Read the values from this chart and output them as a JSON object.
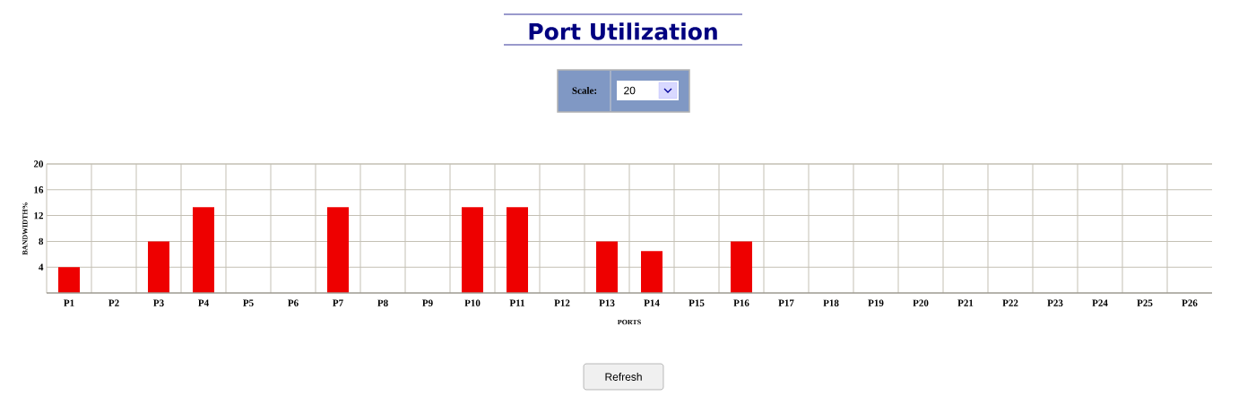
{
  "chart_data": {
    "type": "bar",
    "title": "Port Utilization",
    "xlabel": "PORTS",
    "ylabel": "BANDWIDTH%",
    "categories": [
      "P1",
      "P2",
      "P3",
      "P4",
      "P5",
      "P6",
      "P7",
      "P8",
      "P9",
      "P10",
      "P11",
      "P12",
      "P13",
      "P14",
      "P15",
      "P16",
      "P17",
      "P18",
      "P19",
      "P20",
      "P21",
      "P22",
      "P23",
      "P24",
      "P25",
      "P26"
    ],
    "values": [
      4,
      0,
      8,
      13.3,
      0,
      0,
      13.3,
      0,
      0,
      13.3,
      13.3,
      0,
      8,
      6.5,
      0,
      8,
      0,
      0,
      0,
      0,
      0,
      0,
      0,
      0,
      0,
      0
    ],
    "color": "#ee0000",
    "ylim": [
      0,
      20
    ],
    "yticks": [
      4,
      8,
      12,
      16,
      20
    ],
    "grid": true,
    "annotations": [
      "Scale:",
      "20",
      "Refresh"
    ]
  }
}
